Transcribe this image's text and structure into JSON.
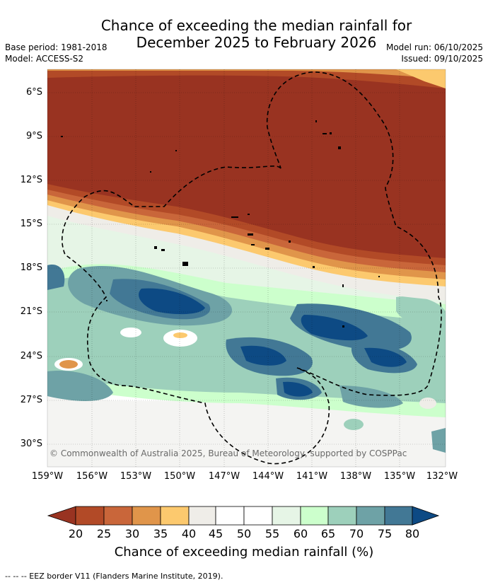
{
  "header": {
    "title_line1": "Chance of exceeding the median rainfall for",
    "title_line2": "December 2025 to February 2026",
    "base_period": "Base period: 1981-2018",
    "model": "Model: ACCESS-S2",
    "model_run": "Model run: 06/10/2025",
    "issued": "Issued: 09/10/2025"
  },
  "map": {
    "lat_labels": [
      "6°S",
      "9°S",
      "12°S",
      "15°S",
      "18°S",
      "21°S",
      "24°S",
      "27°S",
      "30°S"
    ],
    "lon_labels": [
      "159°W",
      "156°W",
      "153°W",
      "150°W",
      "147°W",
      "144°W",
      "141°W",
      "138°W",
      "135°W",
      "132°W"
    ],
    "copyright": "© Commonwealth of Australia 2025, Bureau of Meteorology, supported by COSPPac"
  },
  "colorbar": {
    "labels": [
      "20",
      "25",
      "30",
      "35",
      "40",
      "45",
      "50",
      "55",
      "60",
      "65",
      "70",
      "75",
      "80"
    ],
    "title": "Chance of exceeding median rainfall (%)",
    "colors": [
      "#993321",
      "#b24a27",
      "#c9663a",
      "#e0954a",
      "#fcc96e",
      "#efede8",
      "#ffffff",
      "#ffffff",
      "#e6f5e6",
      "#ccffcc",
      "#9dd0bb",
      "#6ea2a6",
      "#427895",
      "#0d4a84"
    ]
  },
  "legend": {
    "eez": "--  --  -- EEZ border V11 (Flanders Marine Institute, 2019)."
  },
  "colors": {
    "dry_strong": "#993321",
    "dry": "#b24a27",
    "dry_mid": "#c9663a",
    "dry_light": "#e0954a",
    "dry_pale": "#fcc96e",
    "neutral": "#efede8",
    "wet_pale": "#e6f5e6",
    "wet_light": "#ccffcc",
    "wet_mid": "#9dd0bb",
    "wet": "#6ea2a6",
    "wet_strong": "#427895",
    "wet_max": "#0d4a84"
  }
}
